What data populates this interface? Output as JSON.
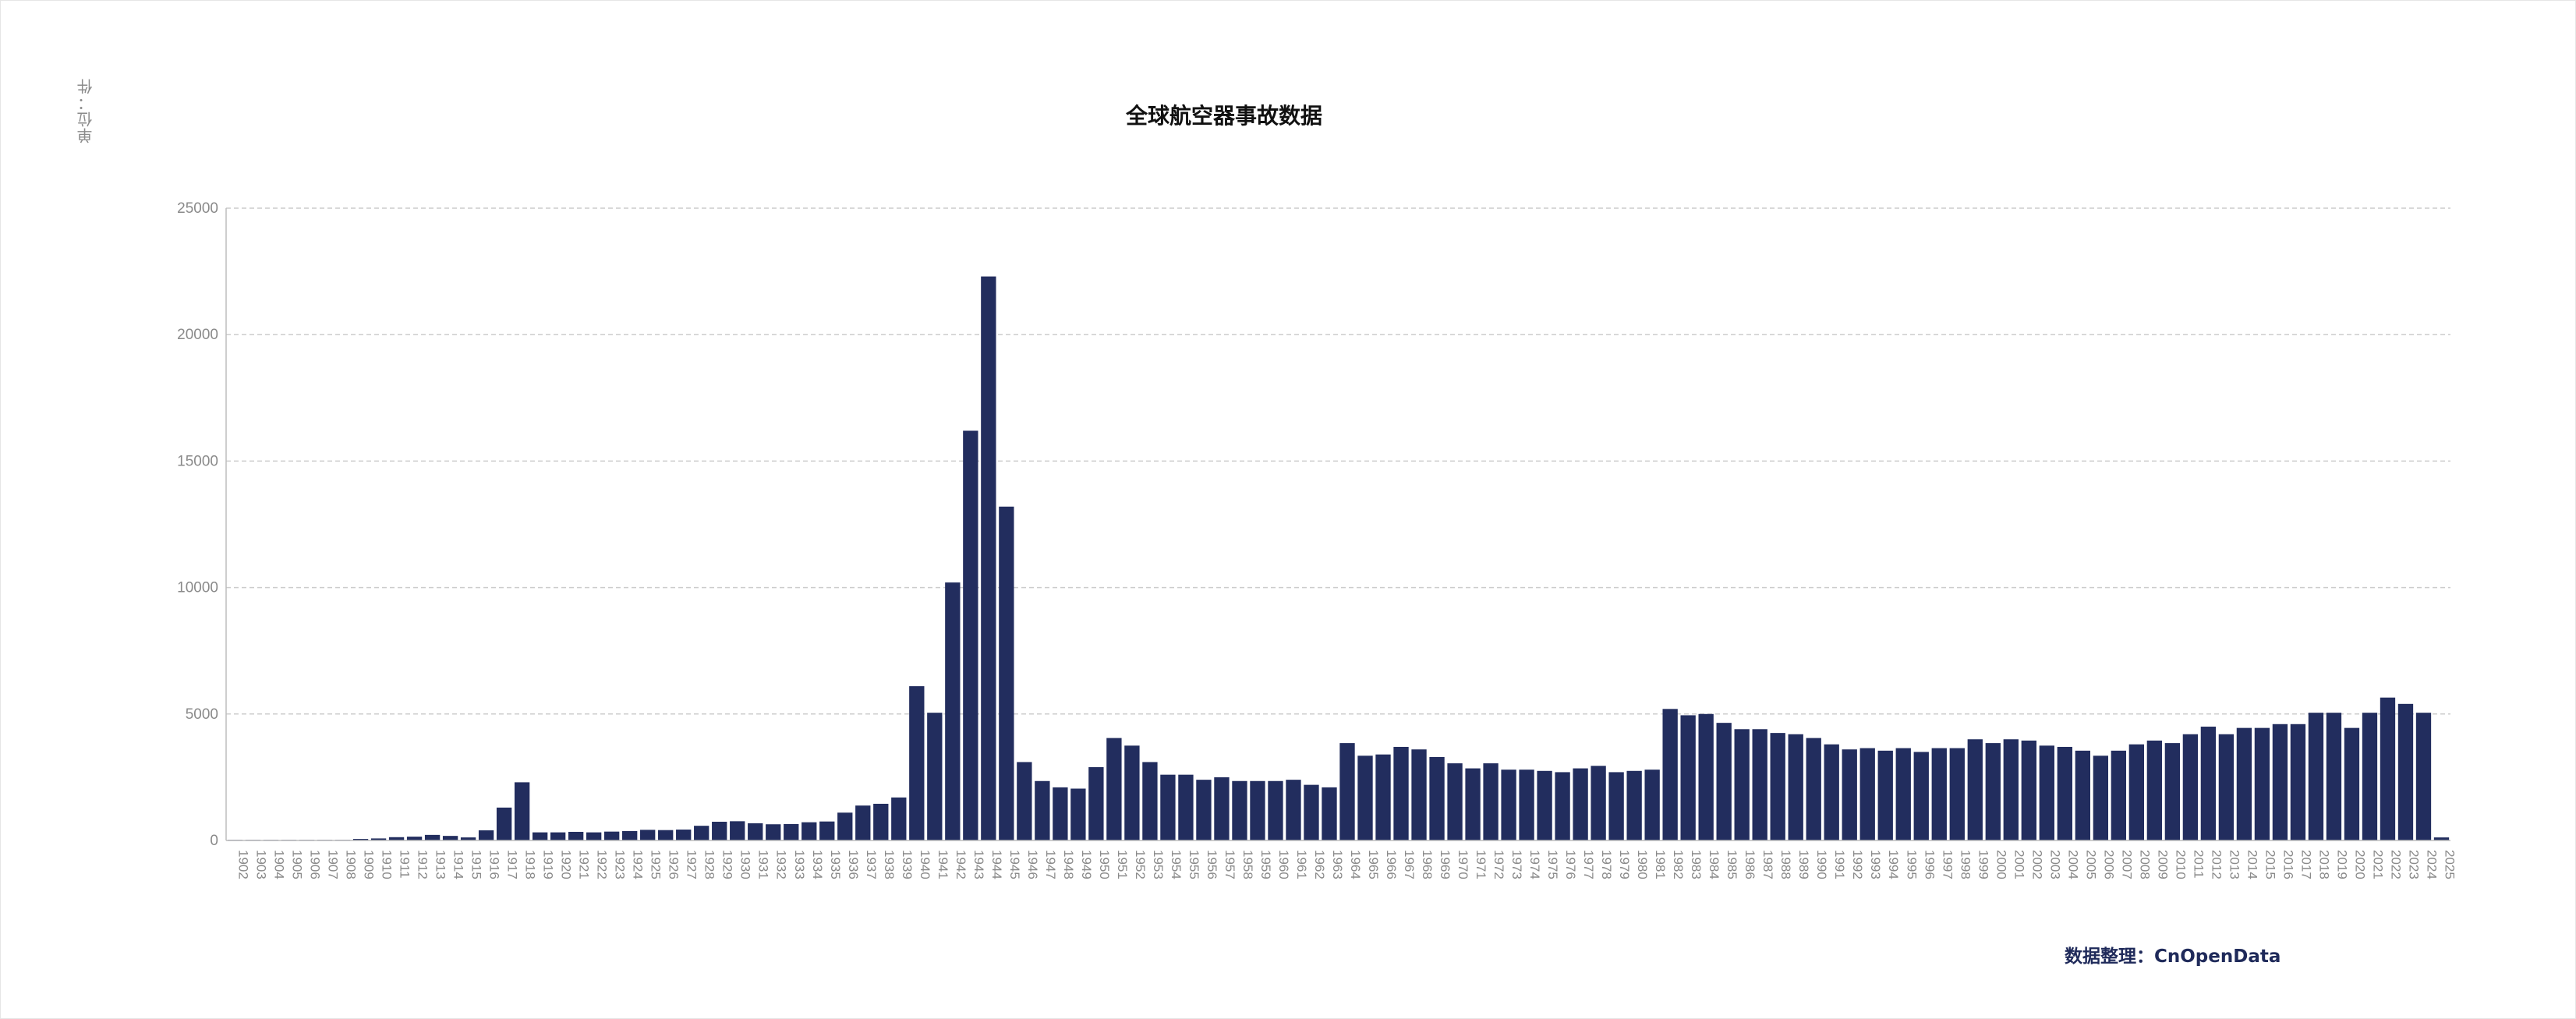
{
  "title": "全球航空器事故数据",
  "unit_label": "单位：件",
  "source_label": "数据整理：CnOpenData",
  "colors": {
    "bar": "#222d5e",
    "grid": "#cccccc",
    "axis": "#bdbdbd",
    "tick_text": "#8a8a8a"
  },
  "chart_data": {
    "type": "bar",
    "title": "全球航空器事故数据",
    "ylabel": "单位：件",
    "xlabel": "",
    "ylim": [
      0,
      25000
    ],
    "yticks": [
      0,
      5000,
      10000,
      15000,
      20000,
      25000
    ],
    "grid": true,
    "legend": "none",
    "categories": [
      "1902",
      "1903",
      "1904",
      "1905",
      "1906",
      "1907",
      "1908",
      "1909",
      "1910",
      "1911",
      "1912",
      "1913",
      "1914",
      "1915",
      "1916",
      "1917",
      "1918",
      "1919",
      "1920",
      "1921",
      "1922",
      "1923",
      "1924",
      "1925",
      "1926",
      "1927",
      "1928",
      "1929",
      "1930",
      "1931",
      "1932",
      "1933",
      "1934",
      "1935",
      "1936",
      "1937",
      "1938",
      "1939",
      "1940",
      "1941",
      "1942",
      "1943",
      "1944",
      "1945",
      "1946",
      "1947",
      "1948",
      "1949",
      "1950",
      "1951",
      "1952",
      "1953",
      "1954",
      "1955",
      "1956",
      "1957",
      "1958",
      "1959",
      "1960",
      "1961",
      "1962",
      "1963",
      "1964",
      "1965",
      "1966",
      "1967",
      "1968",
      "1969",
      "1970",
      "1971",
      "1972",
      "1973",
      "1974",
      "1975",
      "1976",
      "1977",
      "1978",
      "1979",
      "1980",
      "1981",
      "1982",
      "1983",
      "1984",
      "1985",
      "1986",
      "1987",
      "1988",
      "1989",
      "1990",
      "1991",
      "1992",
      "1993",
      "1994",
      "1995",
      "1996",
      "1997",
      "1998",
      "1999",
      "2000",
      "2001",
      "2002",
      "2003",
      "2004",
      "2005",
      "2006",
      "2007",
      "2008",
      "2009",
      "2010",
      "2011",
      "2012",
      "2013",
      "2014",
      "2015",
      "2016",
      "2017",
      "2018",
      "2019",
      "2020",
      "2021",
      "2022",
      "2023",
      "2024",
      "2025"
    ],
    "values": [
      1,
      1,
      2,
      3,
      5,
      8,
      10,
      60,
      80,
      130,
      150,
      220,
      180,
      120,
      400,
      1300,
      2300,
      320,
      320,
      340,
      320,
      350,
      370,
      420,
      410,
      430,
      580,
      740,
      760,
      680,
      640,
      650,
      720,
      750,
      1100,
      1380,
      1450,
      1700,
      6100,
      5050,
      10200,
      16200,
      22300,
      13200,
      3100,
      2350,
      2100,
      2050,
      2900,
      4050,
      3750,
      3100,
      2600,
      2600,
      2400,
      2500,
      2350,
      2350,
      2350,
      2400,
      2200,
      2100,
      3850,
      3350,
      3400,
      3700,
      3600,
      3300,
      3050,
      2850,
      3050,
      2800,
      2800,
      2750,
      2700,
      2850,
      2950,
      2700,
      2750,
      2800,
      5200,
      4950,
      5000,
      4650,
      4400,
      4400,
      4250,
      4200,
      4050,
      3800,
      3600,
      3650,
      3550,
      3650,
      3500,
      3650,
      3650,
      4000,
      3850,
      4000,
      3950,
      3750,
      3700,
      3550,
      3350,
      3550,
      3800,
      3950,
      3850,
      4200,
      4500,
      4200,
      4450,
      4450,
      4600,
      4600,
      5050,
      5050,
      4450,
      5050,
      5650,
      5400,
      5050,
      120
    ]
  }
}
